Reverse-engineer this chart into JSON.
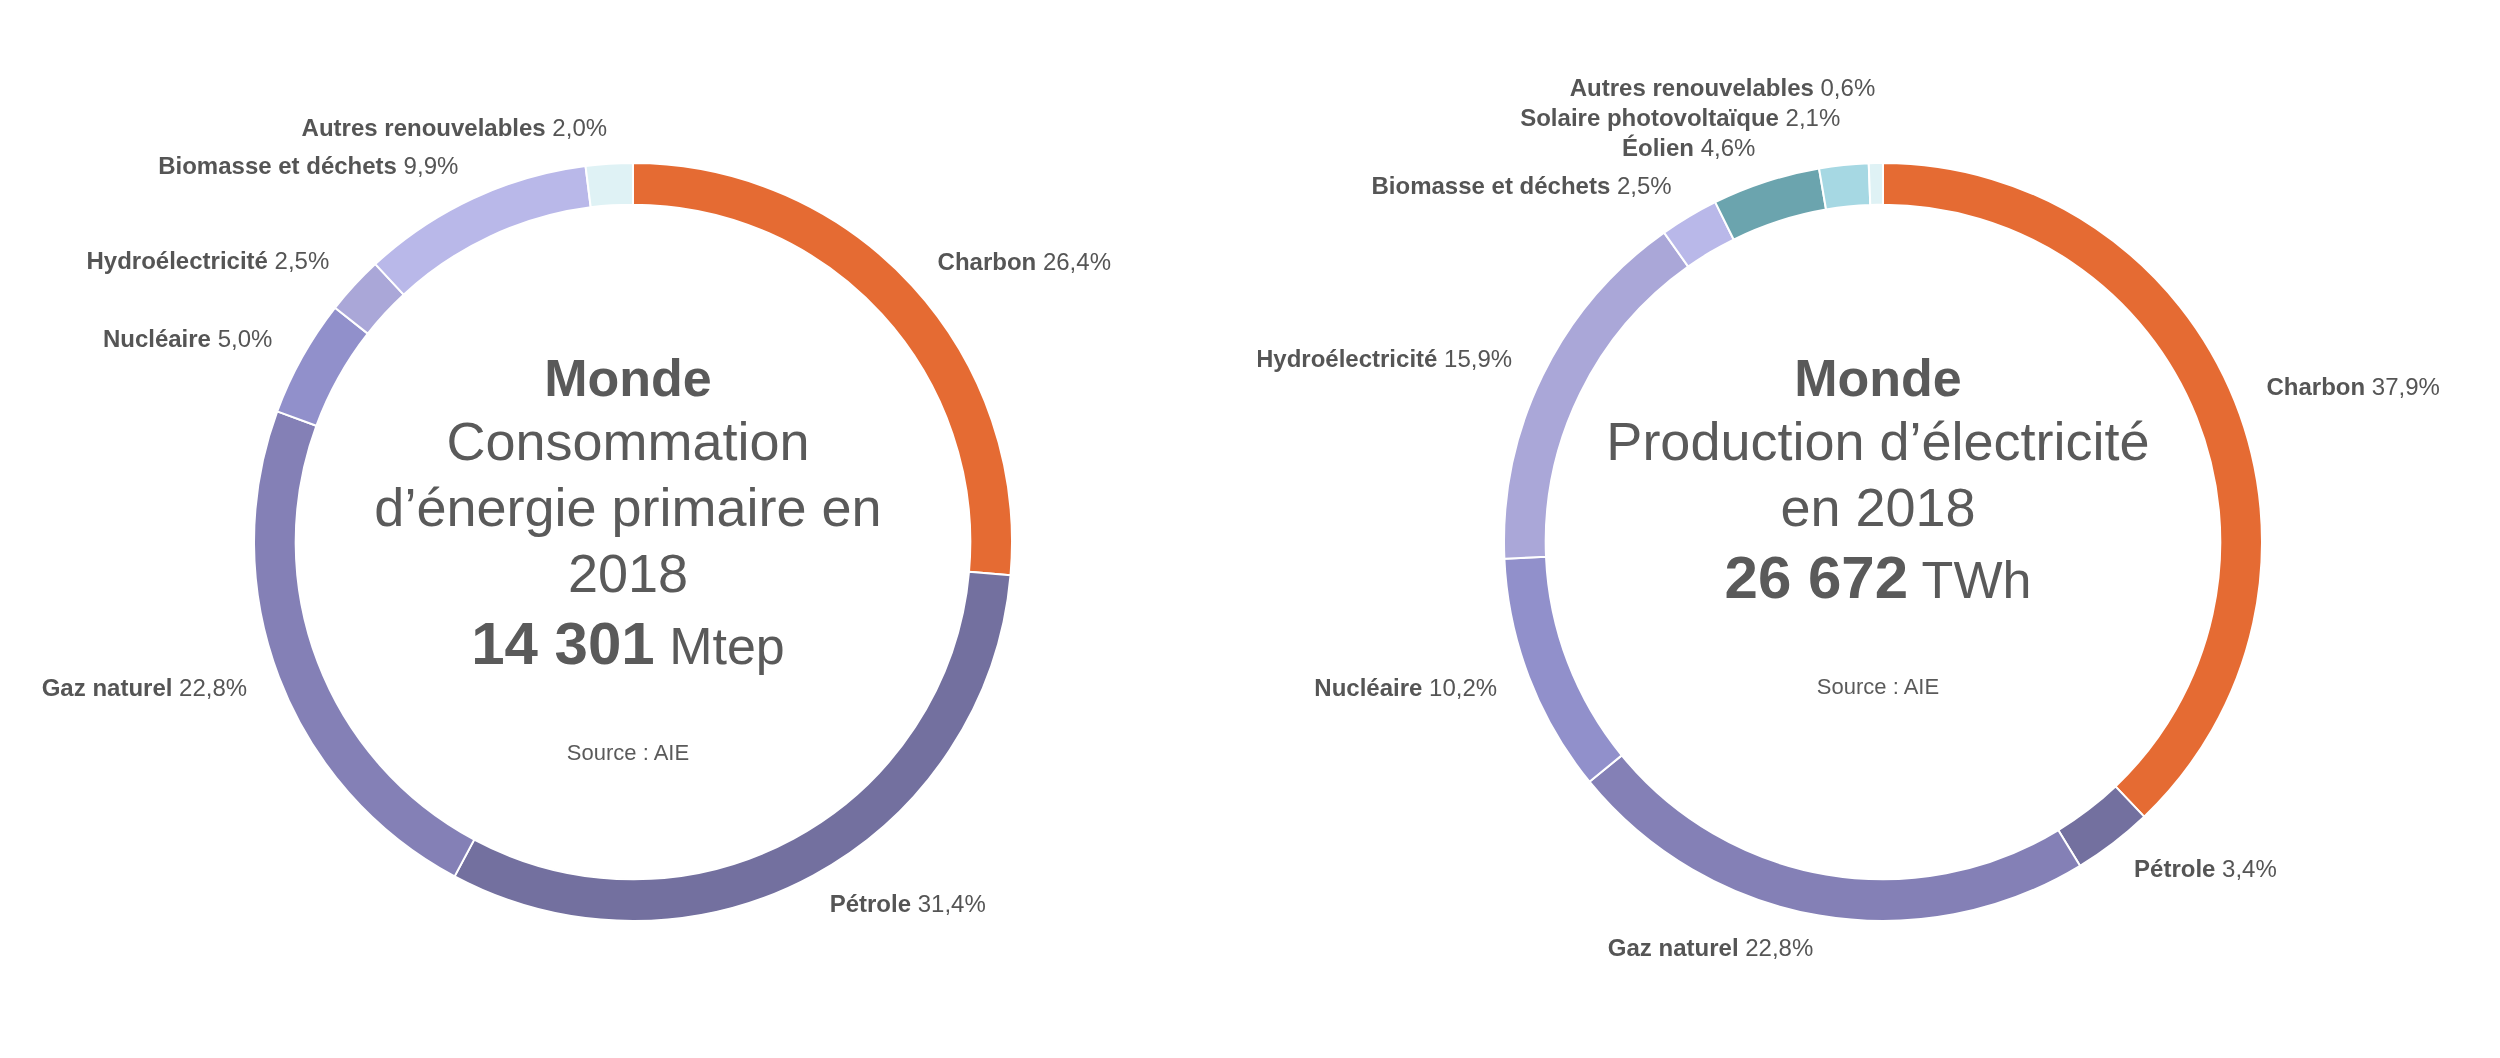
{
  "chart_data": [
    {
      "type": "donut",
      "title": "Monde",
      "subtitle": "Consommation d’énergie primaire en 2018",
      "annotations": [
        "14 301 Mtep",
        "Source : AIE"
      ],
      "legend": false,
      "categories": [
        "Charbon",
        "Pétrole",
        "Gaz naturel",
        "Nucléaire",
        "Hydroélectricité",
        "Biomasse et déchets",
        "Autres renouvelables"
      ],
      "values": [
        26.4,
        31.4,
        22.8,
        5.0,
        2.5,
        9.9,
        2.0
      ],
      "value_labels": [
        "26,4%",
        "31,4%",
        "22,8%",
        "5,0%",
        "2,5%",
        "9,9%",
        "2,0%"
      ],
      "colors": [
        "#e56b33",
        "#73709f",
        "#8480b6",
        "#9190cb",
        "#aaa7d8",
        "#b9b8e9",
        "#dff2f5"
      ]
    },
    {
      "type": "donut",
      "title": "Monde",
      "subtitle": "Production d’électricité en 2018",
      "annotations": [
        "26 672 TWh",
        "Source : AIE"
      ],
      "legend": false,
      "categories": [
        "Charbon",
        "Pétrole",
        "Gaz naturel",
        "Nucléaire",
        "Hydroélectricité",
        "Biomasse et déchets",
        "Éolien",
        "Solaire photovoltaïque",
        "Autres renouvelables"
      ],
      "values": [
        37.9,
        3.4,
        22.8,
        10.2,
        15.9,
        2.5,
        4.6,
        2.1,
        0.6
      ],
      "value_labels": [
        "37,9%",
        "3,4%",
        "22,8%",
        "10,2%",
        "15,9%",
        "2,5%",
        "4,6%",
        "2,1%",
        "0,6%"
      ],
      "colors": [
        "#e56b33",
        "#73709f",
        "#8480b6",
        "#9190cb",
        "#aaa7d8",
        "#b9b8e9",
        "#6ba4ae",
        "#a6d8e3",
        "#dff2f5"
      ]
    }
  ]
}
